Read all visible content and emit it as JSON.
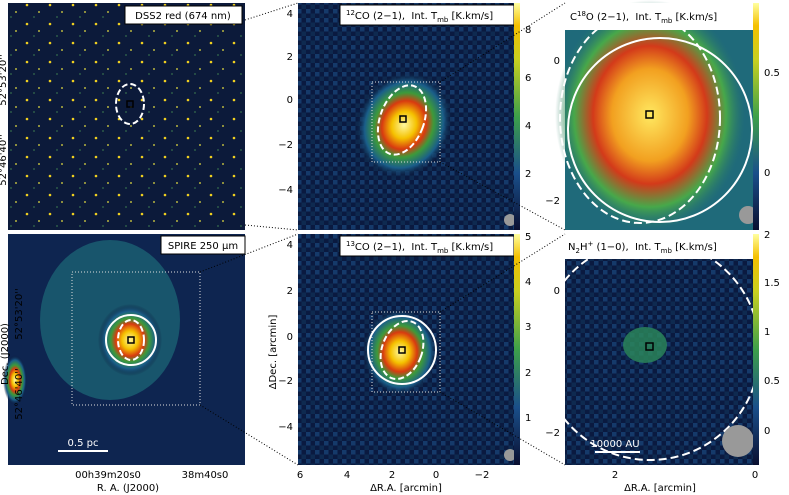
{
  "panels": [
    {
      "label": "DSS2 red (674 nm)",
      "yticks": [
        "52°53'20''",
        "52°46'40''"
      ]
    },
    {
      "label": {
        "sup": "12",
        "text": "CO (2−1),  Int. T",
        "sub": "mb",
        "unit": " [K.km/s]"
      },
      "yticks": [
        "4",
        "2",
        "0",
        "−2",
        "−4"
      ],
      "cbticks": [
        "8",
        "6",
        "4",
        "2"
      ]
    },
    {
      "label": {
        "pre": "C",
        "sup": "18",
        "text": "O (2−1),  Int. T",
        "sub": "mb",
        "unit": " [K.km/s]"
      },
      "yticks": [
        "0",
        "−2"
      ],
      "cbticks": [
        "0.5",
        "0"
      ]
    },
    {
      "label": "SPIRE 250 μm",
      "scale": "0.5 pc",
      "ylabel": "Dec. (J2000)",
      "yticks": [
        "52°53'20''",
        "52°46'40''"
      ],
      "xticks": [
        "00h39m20s0",
        "38m40s0"
      ],
      "xlabel": "R. A. (J2000)"
    },
    {
      "label": {
        "sup": "13",
        "text": "CO (2−1),  Int. T",
        "sub": "mb",
        "unit": " [K.km/s]"
      },
      "ylabel": "ΔDec. [arcmin]",
      "yticks": [
        "4",
        "2",
        "0",
        "−2",
        "−4"
      ],
      "xticks": [
        "6",
        "4",
        "2",
        "0",
        "−2"
      ],
      "xlabel": "ΔR.A. [arcmin]",
      "cbticks": [
        "5",
        "4",
        "3",
        "2",
        "1"
      ]
    },
    {
      "label": {
        "text": "N",
        "sub": "2",
        "text2": "H",
        "sup": "+",
        "text3": " (1−0),  Int. T",
        "sub2": "mb",
        "unit": " [K.km/s]"
      },
      "scale": "10000 AU",
      "yticks": [
        "0",
        "−2"
      ],
      "xticks": [
        "2",
        "0"
      ],
      "xlabel": "ΔR.A. [arcmin]",
      "cbticks": [
        "2",
        "1.5",
        "1",
        "0.5",
        "0"
      ]
    }
  ]
}
